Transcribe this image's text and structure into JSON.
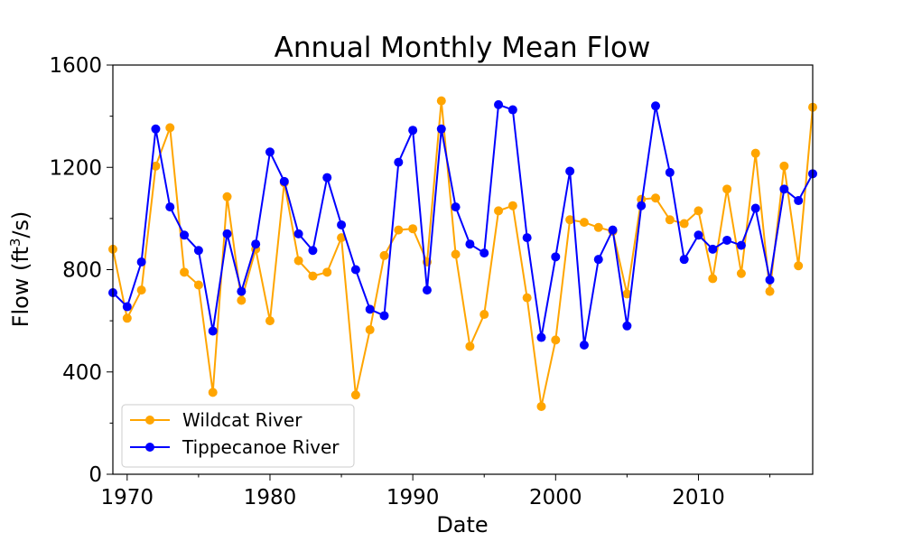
{
  "chart_data": {
    "type": "line",
    "title": "Annual Monthly Mean Flow",
    "xlabel": "Date",
    "ylabel_prefix": "Flow (ft",
    "ylabel_sup": "3",
    "ylabel_suffix": "/s)",
    "xlim": [
      1969,
      2018
    ],
    "ylim": [
      0,
      1600
    ],
    "xticks": [
      1970,
      1980,
      1990,
      2000,
      2010
    ],
    "xtick_labels": [
      "1970",
      "1980",
      "1990",
      "2000",
      "2010"
    ],
    "yticks": [
      0,
      400,
      800,
      1200,
      1600
    ],
    "ytick_labels": [
      "0",
      "400",
      "800",
      "1200",
      "1600"
    ],
    "grid": false,
    "legend_position": "lower-left",
    "x": [
      1969,
      1970,
      1971,
      1972,
      1973,
      1974,
      1975,
      1976,
      1977,
      1978,
      1979,
      1980,
      1981,
      1982,
      1983,
      1984,
      1985,
      1986,
      1987,
      1988,
      1989,
      1990,
      1991,
      1992,
      1993,
      1994,
      1995,
      1996,
      1997,
      1998,
      1999,
      2000,
      2001,
      2002,
      2003,
      2004,
      2005,
      2006,
      2007,
      2008,
      2009,
      2010,
      2011,
      2012,
      2013,
      2014,
      2015,
      2016,
      2017,
      2018
    ],
    "series": [
      {
        "name": "Wildcat River",
        "color": "#FFA500",
        "values": [
          880,
          610,
          720,
          1205,
          1355,
          790,
          740,
          320,
          1085,
          680,
          880,
          600,
          1140,
          835,
          775,
          790,
          925,
          310,
          565,
          855,
          955,
          960,
          830,
          1460,
          860,
          500,
          625,
          1030,
          1050,
          690,
          265,
          525,
          995,
          985,
          965,
          950,
          705,
          1075,
          1080,
          995,
          980,
          1030,
          765,
          1115,
          785,
          1255,
          715,
          1205,
          815,
          1435
        ]
      },
      {
        "name": "Tippecanoe River",
        "color": "#0000FF",
        "values": [
          710,
          655,
          830,
          1350,
          1045,
          935,
          875,
          560,
          940,
          715,
          900,
          1260,
          1145,
          940,
          875,
          1160,
          975,
          800,
          645,
          620,
          1220,
          1345,
          720,
          1350,
          1045,
          900,
          865,
          1445,
          1425,
          925,
          535,
          850,
          1185,
          505,
          840,
          955,
          580,
          1050,
          1440,
          1180,
          840,
          935,
          880,
          915,
          895,
          1040,
          760,
          1115,
          1070,
          1175
        ]
      }
    ]
  }
}
